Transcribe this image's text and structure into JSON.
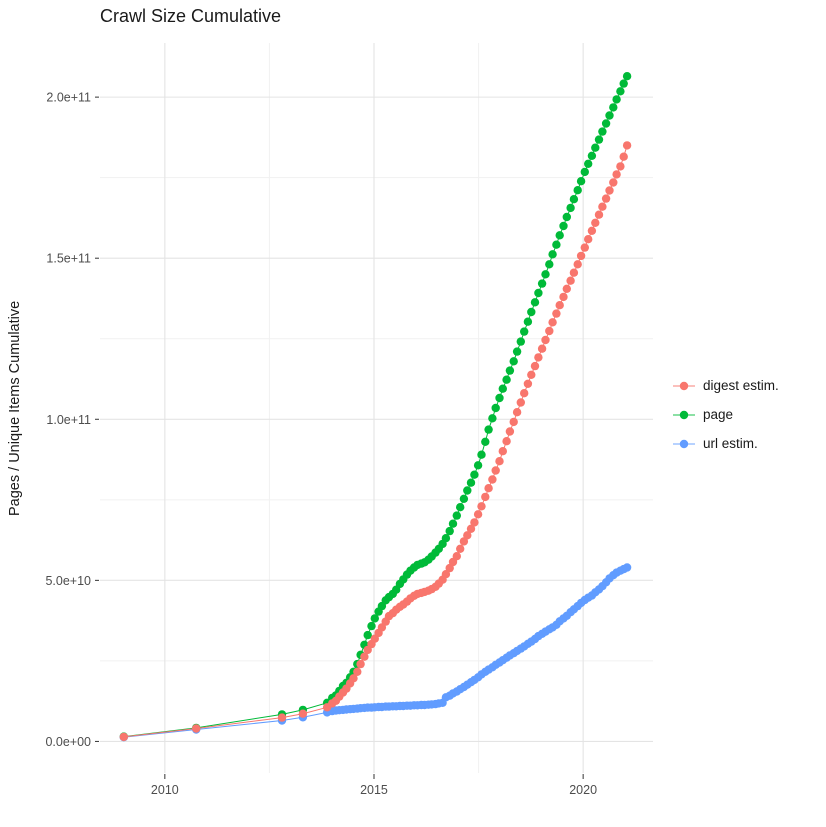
{
  "chart_data": {
    "type": "line",
    "marker": "point",
    "title": "Crawl Size Cumulative",
    "xlabel": "",
    "ylabel": "Pages / Unique Items Cumulative",
    "legend_position": "right",
    "grid": true,
    "value_scale": 1000000000,
    "x_domain": [
      2008.45,
      2021.67
    ],
    "y_domain": [
      -9.8,
      216.8
    ],
    "x_ticks": [
      {
        "value": 2010,
        "label": "2010"
      },
      {
        "value": 2015,
        "label": "2015"
      },
      {
        "value": 2020,
        "label": "2020"
      }
    ],
    "x_minor_ticks": [
      2012.5,
      2017.5
    ],
    "y_ticks": [
      {
        "value": 0,
        "label": "0.0e+00"
      },
      {
        "value": 50,
        "label": "5.0e+10"
      },
      {
        "value": 100,
        "label": "1.0e+11"
      },
      {
        "value": 150,
        "label": "1.5e+11"
      },
      {
        "value": 200,
        "label": "2.0e+11"
      }
    ],
    "y_minor_ticks": [
      25,
      75,
      125,
      175
    ],
    "series": [
      {
        "name": "digest estim.",
        "color": "#F8766D",
        "points": [
          [
            2009.02,
            1.4
          ],
          [
            2010.75,
            4.0
          ],
          [
            2012.8,
            7.4
          ],
          [
            2013.3,
            8.6
          ],
          [
            2013.88,
            10.6
          ],
          [
            2014.0,
            11.8
          ],
          [
            2014.09,
            12.6
          ],
          [
            2014.17,
            13.9
          ],
          [
            2014.26,
            15.2
          ],
          [
            2014.34,
            16.4
          ],
          [
            2014.43,
            18.0
          ],
          [
            2014.51,
            19.6
          ],
          [
            2014.6,
            21.6
          ],
          [
            2014.68,
            24.0
          ],
          [
            2014.77,
            26.3
          ],
          [
            2014.85,
            28.4
          ],
          [
            2014.94,
            30.2
          ],
          [
            2015.02,
            31.9
          ],
          [
            2015.11,
            33.7
          ],
          [
            2015.19,
            35.4
          ],
          [
            2015.28,
            37.2
          ],
          [
            2015.36,
            38.9
          ],
          [
            2015.45,
            39.8
          ],
          [
            2015.53,
            40.9
          ],
          [
            2015.62,
            41.8
          ],
          [
            2015.7,
            42.5
          ],
          [
            2015.79,
            43.4
          ],
          [
            2015.87,
            44.4
          ],
          [
            2015.96,
            45.2
          ],
          [
            2016.04,
            45.8
          ],
          [
            2016.13,
            46.1
          ],
          [
            2016.21,
            46.4
          ],
          [
            2016.3,
            46.8
          ],
          [
            2016.38,
            47.3
          ],
          [
            2016.47,
            48.0
          ],
          [
            2016.55,
            49.0
          ],
          [
            2016.64,
            50.2
          ],
          [
            2016.72,
            51.9
          ],
          [
            2016.81,
            53.8
          ],
          [
            2016.89,
            55.7
          ],
          [
            2016.98,
            57.5
          ],
          [
            2017.06,
            59.8
          ],
          [
            2017.15,
            62.1
          ],
          [
            2017.23,
            64.0
          ],
          [
            2017.32,
            66.0
          ],
          [
            2017.4,
            68.0
          ],
          [
            2017.49,
            70.5
          ],
          [
            2017.57,
            73.0
          ],
          [
            2017.66,
            75.9
          ],
          [
            2017.74,
            78.6
          ],
          [
            2017.83,
            81.3
          ],
          [
            2017.91,
            84.1
          ],
          [
            2018.0,
            87.0
          ],
          [
            2018.08,
            90.1
          ],
          [
            2018.17,
            93.2
          ],
          [
            2018.25,
            96.2
          ],
          [
            2018.34,
            99.2
          ],
          [
            2018.42,
            102.2
          ],
          [
            2018.51,
            105.2
          ],
          [
            2018.59,
            108.1
          ],
          [
            2018.68,
            111.0
          ],
          [
            2018.76,
            113.8
          ],
          [
            2018.85,
            116.5
          ],
          [
            2018.93,
            119.2
          ],
          [
            2019.02,
            121.9
          ],
          [
            2019.1,
            124.6
          ],
          [
            2019.19,
            127.4
          ],
          [
            2019.27,
            130.1
          ],
          [
            2019.36,
            132.8
          ],
          [
            2019.44,
            135.4
          ],
          [
            2019.53,
            138.0
          ],
          [
            2019.61,
            140.5
          ],
          [
            2019.7,
            143.0
          ],
          [
            2019.78,
            145.5
          ],
          [
            2019.87,
            148.1
          ],
          [
            2019.95,
            150.7
          ],
          [
            2020.04,
            153.3
          ],
          [
            2020.12,
            155.9
          ],
          [
            2020.21,
            158.5
          ],
          [
            2020.29,
            161.0
          ],
          [
            2020.38,
            163.5
          ],
          [
            2020.46,
            166.0
          ],
          [
            2020.55,
            168.5
          ],
          [
            2020.63,
            171.0
          ],
          [
            2020.72,
            173.5
          ],
          [
            2020.8,
            176.0
          ],
          [
            2020.89,
            178.5
          ],
          [
            2020.97,
            181.5
          ],
          [
            2021.05,
            185.0
          ]
        ]
      },
      {
        "name": "page",
        "color": "#00BA38",
        "points": [
          [
            2009.02,
            1.5
          ],
          [
            2010.75,
            4.2
          ],
          [
            2012.8,
            8.4
          ],
          [
            2013.3,
            9.8
          ],
          [
            2013.88,
            12.0
          ],
          [
            2014.0,
            13.5
          ],
          [
            2014.09,
            14.3
          ],
          [
            2014.17,
            15.7
          ],
          [
            2014.26,
            17.2
          ],
          [
            2014.34,
            18.2
          ],
          [
            2014.43,
            19.9
          ],
          [
            2014.51,
            21.6
          ],
          [
            2014.6,
            24.0
          ],
          [
            2014.68,
            26.9
          ],
          [
            2014.77,
            30.0
          ],
          [
            2014.85,
            33.0
          ],
          [
            2014.94,
            35.8
          ],
          [
            2015.02,
            38.2
          ],
          [
            2015.11,
            40.3
          ],
          [
            2015.19,
            42.0
          ],
          [
            2015.28,
            43.8
          ],
          [
            2015.36,
            44.8
          ],
          [
            2015.45,
            45.8
          ],
          [
            2015.53,
            47.1
          ],
          [
            2015.62,
            48.9
          ],
          [
            2015.7,
            50.3
          ],
          [
            2015.79,
            51.8
          ],
          [
            2015.87,
            53.0
          ],
          [
            2015.96,
            54.0
          ],
          [
            2016.04,
            54.8
          ],
          [
            2016.13,
            55.2
          ],
          [
            2016.21,
            55.6
          ],
          [
            2016.3,
            56.4
          ],
          [
            2016.38,
            57.4
          ],
          [
            2016.47,
            58.6
          ],
          [
            2016.55,
            59.8
          ],
          [
            2016.64,
            61.3
          ],
          [
            2016.72,
            63.1
          ],
          [
            2016.81,
            65.3
          ],
          [
            2016.89,
            67.6
          ],
          [
            2016.98,
            70.1
          ],
          [
            2017.06,
            72.7
          ],
          [
            2017.15,
            75.3
          ],
          [
            2017.23,
            77.9
          ],
          [
            2017.32,
            80.3
          ],
          [
            2017.4,
            82.8
          ],
          [
            2017.49,
            85.7
          ],
          [
            2017.57,
            89.0
          ],
          [
            2017.66,
            93.0
          ],
          [
            2017.74,
            96.8
          ],
          [
            2017.83,
            100.3
          ],
          [
            2017.91,
            103.5
          ],
          [
            2018.0,
            106.6
          ],
          [
            2018.08,
            109.5
          ],
          [
            2018.17,
            112.3
          ],
          [
            2018.25,
            115.1
          ],
          [
            2018.34,
            118.0
          ],
          [
            2018.42,
            121.0
          ],
          [
            2018.51,
            124.1
          ],
          [
            2018.59,
            127.2
          ],
          [
            2018.68,
            130.3
          ],
          [
            2018.76,
            133.3
          ],
          [
            2018.85,
            136.3
          ],
          [
            2018.93,
            139.2
          ],
          [
            2019.02,
            142.1
          ],
          [
            2019.1,
            145.0
          ],
          [
            2019.19,
            148.1
          ],
          [
            2019.27,
            151.2
          ],
          [
            2019.36,
            154.2
          ],
          [
            2019.44,
            157.1
          ],
          [
            2019.53,
            160.0
          ],
          [
            2019.61,
            162.8
          ],
          [
            2019.7,
            165.6
          ],
          [
            2019.78,
            168.3
          ],
          [
            2019.87,
            171.1
          ],
          [
            2019.95,
            173.9
          ],
          [
            2020.04,
            176.8
          ],
          [
            2020.12,
            179.3
          ],
          [
            2020.21,
            181.8
          ],
          [
            2020.29,
            184.3
          ],
          [
            2020.38,
            186.8
          ],
          [
            2020.46,
            189.3
          ],
          [
            2020.55,
            191.8
          ],
          [
            2020.63,
            194.3
          ],
          [
            2020.72,
            196.8
          ],
          [
            2020.8,
            199.3
          ],
          [
            2020.89,
            201.8
          ],
          [
            2020.97,
            204.2
          ],
          [
            2021.05,
            206.5
          ]
        ]
      },
      {
        "name": "url estim.",
        "color": "#619CFF",
        "points": [
          [
            2009.02,
            1.3
          ],
          [
            2010.75,
            3.7
          ],
          [
            2012.8,
            6.5
          ],
          [
            2013.3,
            7.5
          ],
          [
            2013.88,
            9.0
          ],
          [
            2014.0,
            9.4
          ],
          [
            2014.09,
            9.6
          ],
          [
            2014.17,
            9.7
          ],
          [
            2014.26,
            9.8
          ],
          [
            2014.34,
            9.9
          ],
          [
            2014.43,
            10.0
          ],
          [
            2014.51,
            10.1
          ],
          [
            2014.6,
            10.2
          ],
          [
            2014.68,
            10.3
          ],
          [
            2014.77,
            10.4
          ],
          [
            2014.85,
            10.5
          ],
          [
            2014.94,
            10.5
          ],
          [
            2015.02,
            10.6
          ],
          [
            2015.11,
            10.7
          ],
          [
            2015.19,
            10.7
          ],
          [
            2015.28,
            10.8
          ],
          [
            2015.36,
            10.8
          ],
          [
            2015.45,
            10.9
          ],
          [
            2015.53,
            10.9
          ],
          [
            2015.62,
            11.0
          ],
          [
            2015.7,
            11.0
          ],
          [
            2015.79,
            11.1
          ],
          [
            2015.87,
            11.1
          ],
          [
            2015.96,
            11.2
          ],
          [
            2016.04,
            11.2
          ],
          [
            2016.13,
            11.3
          ],
          [
            2016.21,
            11.3
          ],
          [
            2016.3,
            11.4
          ],
          [
            2016.38,
            11.5
          ],
          [
            2016.47,
            11.6
          ],
          [
            2016.55,
            11.8
          ],
          [
            2016.64,
            12.0
          ],
          [
            2016.72,
            13.7
          ],
          [
            2016.81,
            14.2
          ],
          [
            2016.89,
            14.9
          ],
          [
            2016.98,
            15.5
          ],
          [
            2017.06,
            16.2
          ],
          [
            2017.15,
            16.9
          ],
          [
            2017.23,
            17.6
          ],
          [
            2017.32,
            18.4
          ],
          [
            2017.4,
            19.1
          ],
          [
            2017.49,
            19.9
          ],
          [
            2017.57,
            20.8
          ],
          [
            2017.66,
            21.6
          ],
          [
            2017.74,
            22.3
          ],
          [
            2017.83,
            23.0
          ],
          [
            2017.91,
            23.8
          ],
          [
            2018.0,
            24.5
          ],
          [
            2018.08,
            25.2
          ],
          [
            2018.17,
            26.0
          ],
          [
            2018.25,
            26.7
          ],
          [
            2018.34,
            27.4
          ],
          [
            2018.42,
            28.1
          ],
          [
            2018.51,
            28.8
          ],
          [
            2018.59,
            29.5
          ],
          [
            2018.68,
            30.3
          ],
          [
            2018.76,
            31.0
          ],
          [
            2018.85,
            31.8
          ],
          [
            2018.93,
            32.7
          ],
          [
            2019.02,
            33.4
          ],
          [
            2019.1,
            34.1
          ],
          [
            2019.19,
            34.8
          ],
          [
            2019.27,
            35.4
          ],
          [
            2019.36,
            36.2
          ],
          [
            2019.44,
            37.3
          ],
          [
            2019.53,
            38.2
          ],
          [
            2019.61,
            39.0
          ],
          [
            2019.7,
            40.1
          ],
          [
            2019.78,
            41.0
          ],
          [
            2019.87,
            42.0
          ],
          [
            2019.95,
            43.0
          ],
          [
            2020.04,
            43.9
          ],
          [
            2020.12,
            44.6
          ],
          [
            2020.21,
            45.3
          ],
          [
            2020.29,
            46.3
          ],
          [
            2020.38,
            47.2
          ],
          [
            2020.46,
            48.2
          ],
          [
            2020.55,
            49.4
          ],
          [
            2020.63,
            50.6
          ],
          [
            2020.72,
            51.6
          ],
          [
            2020.8,
            52.4
          ],
          [
            2020.89,
            53.0
          ],
          [
            2020.97,
            53.5
          ],
          [
            2021.05,
            54.0
          ]
        ]
      }
    ]
  },
  "style": {
    "grid_major_color": "#e4e4e4",
    "grid_minor_color": "#f1f1f1",
    "tick_mark_color": "#333333",
    "tick_label_color": "#4d4d4d",
    "background": "#ffffff"
  }
}
